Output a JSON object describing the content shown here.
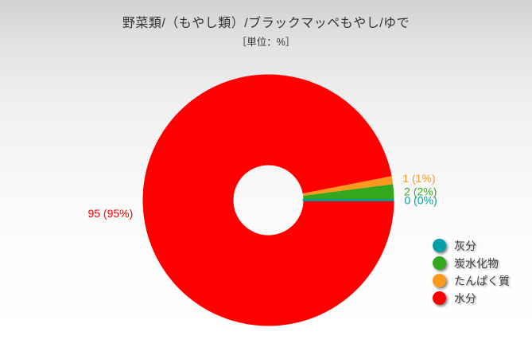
{
  "chart_data": {
    "type": "pie",
    "subtype": "donut",
    "title": "野菜類/（もやし類）/ブラックマッペもやし/ゆで",
    "subtitle": "［単位：%］",
    "unit": "%",
    "start_angle_deg": 0,
    "direction": "counterclockwise",
    "inner_radius_ratio": 0.28,
    "legend_position": "bottom-right",
    "slices": [
      {
        "label": "灰分",
        "value": 0,
        "data_label": "0 (0%)",
        "color": "#00A0A8"
      },
      {
        "label": "炭水化物",
        "value": 2,
        "data_label": "2 (2%)",
        "color": "#33A81E"
      },
      {
        "label": "たんぱく質",
        "value": 1,
        "data_label": "1 (1%)",
        "color": "#FF981E"
      },
      {
        "label": "水分",
        "value": 95,
        "data_label": "95 (95%)",
        "color": "#FF0000"
      }
    ]
  }
}
